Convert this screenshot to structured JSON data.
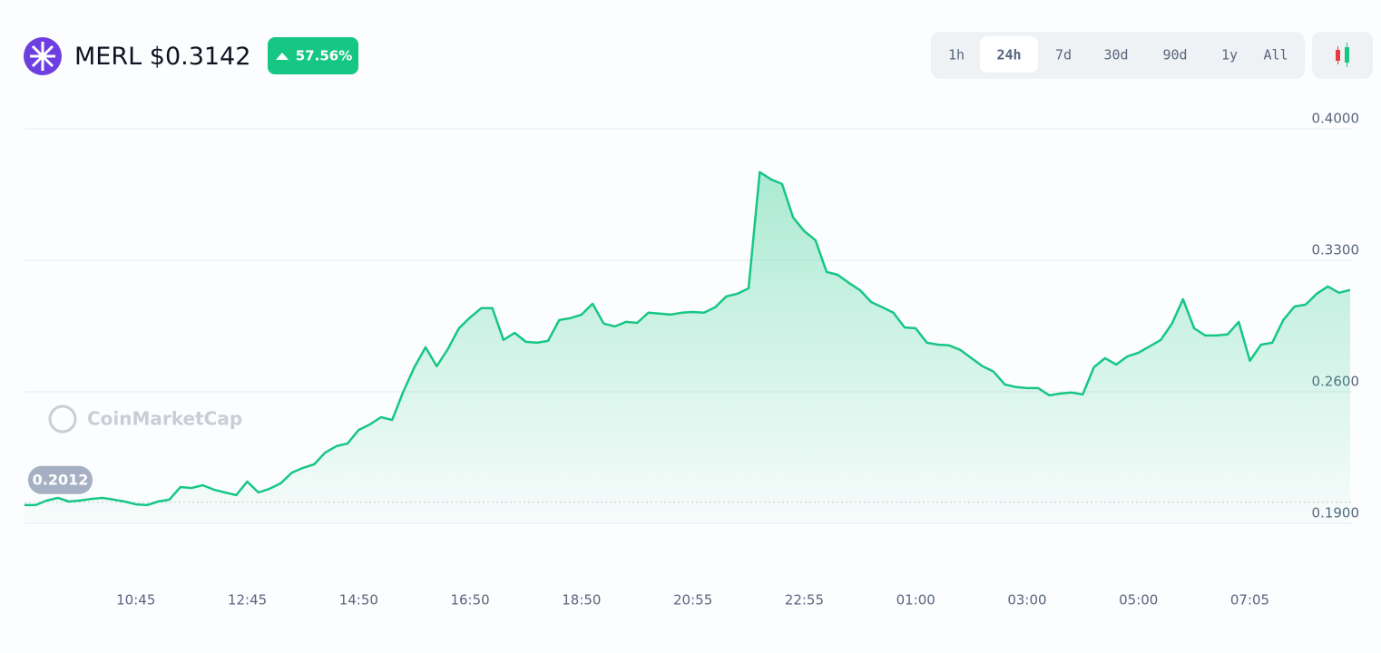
{
  "header": {
    "symbol": "MERL",
    "price": "$0.3142",
    "change": "57.56%",
    "timeframes": [
      "1h",
      "24h",
      "7d",
      "30d",
      "90d",
      "1y",
      "All"
    ],
    "active_timeframe": "24h"
  },
  "watermark": "CoinMarketCap",
  "chart_data": {
    "type": "line",
    "color": "#16c784",
    "categories": [
      null,
      null,
      null,
      null,
      null,
      null,
      null,
      null,
      null,
      null,
      "10:45",
      null,
      null,
      null,
      null,
      null,
      null,
      null,
      null,
      null,
      "12:45",
      null,
      null,
      null,
      null,
      null,
      null,
      null,
      null,
      null,
      "14:50",
      null,
      null,
      null,
      null,
      null,
      null,
      null,
      null,
      null,
      "16:50",
      null,
      null,
      null,
      null,
      null,
      null,
      null,
      null,
      null,
      "18:50",
      null,
      null,
      null,
      null,
      null,
      null,
      null,
      null,
      null,
      "20:55",
      null,
      null,
      null,
      null,
      null,
      null,
      null,
      null,
      null,
      "22:55",
      null,
      null,
      null,
      null,
      null,
      null,
      null,
      null,
      null,
      "01:00",
      null,
      null,
      null,
      null,
      null,
      null,
      null,
      null,
      null,
      "03:00",
      null,
      null,
      null,
      null,
      null,
      null,
      null,
      null,
      null,
      "05:00",
      null,
      null,
      null,
      null,
      null,
      null,
      null,
      null,
      null,
      "07:05",
      null,
      null,
      null,
      null,
      null,
      null,
      null,
      null,
      null
    ],
    "values": [
      0.1997,
      0.1997,
      0.2021,
      0.2035,
      0.2016,
      0.2021,
      0.203,
      0.2035,
      0.2026,
      0.2016,
      0.2001,
      0.1997,
      0.2016,
      0.2026,
      0.2093,
      0.2088,
      0.2103,
      0.2079,
      0.2064,
      0.205,
      0.2122,
      0.2064,
      0.2084,
      0.2113,
      0.217,
      0.2195,
      0.2214,
      0.2277,
      0.2311,
      0.2325,
      0.2397,
      0.2426,
      0.2465,
      0.245,
      0.26,
      0.2731,
      0.2837,
      0.2736,
      0.2827,
      0.2938,
      0.2996,
      0.3045,
      0.3045,
      0.2876,
      0.2914,
      0.2866,
      0.2861,
      0.2871,
      0.2982,
      0.2992,
      0.3011,
      0.3069,
      0.2963,
      0.2948,
      0.2972,
      0.2967,
      0.3021,
      0.3016,
      0.3011,
      0.3021,
      0.3025,
      0.3021,
      0.305,
      0.3108,
      0.3122,
      0.3151,
      0.3769,
      0.3731,
      0.3706,
      0.3528,
      0.3455,
      0.3407,
      0.3238,
      0.3223,
      0.318,
      0.3141,
      0.3078,
      0.305,
      0.3021,
      0.2943,
      0.2938,
      0.2861,
      0.2851,
      0.2847,
      0.2823,
      0.2779,
      0.2736,
      0.2707,
      0.2639,
      0.2625,
      0.262,
      0.262,
      0.2581,
      0.2591,
      0.2596,
      0.2586,
      0.2731,
      0.2779,
      0.2745,
      0.2789,
      0.2808,
      0.2842,
      0.2876,
      0.2963,
      0.3093,
      0.2938,
      0.29,
      0.29,
      0.2905,
      0.2972,
      0.2765,
      0.2851,
      0.2861,
      0.2982,
      0.3054,
      0.3064,
      0.3122,
      0.3161,
      0.3127,
      0.3142
    ],
    "open_price": 0.2012,
    "ylim": [
      0.19,
      0.4
    ],
    "yticks": [
      {
        "value": 0.4,
        "label": "0.4000"
      },
      {
        "value": 0.33,
        "label": "0.3300"
      },
      {
        "value": 0.26,
        "label": "0.2600"
      },
      {
        "value": 0.19,
        "label": "0.1900"
      }
    ],
    "grid": true
  }
}
